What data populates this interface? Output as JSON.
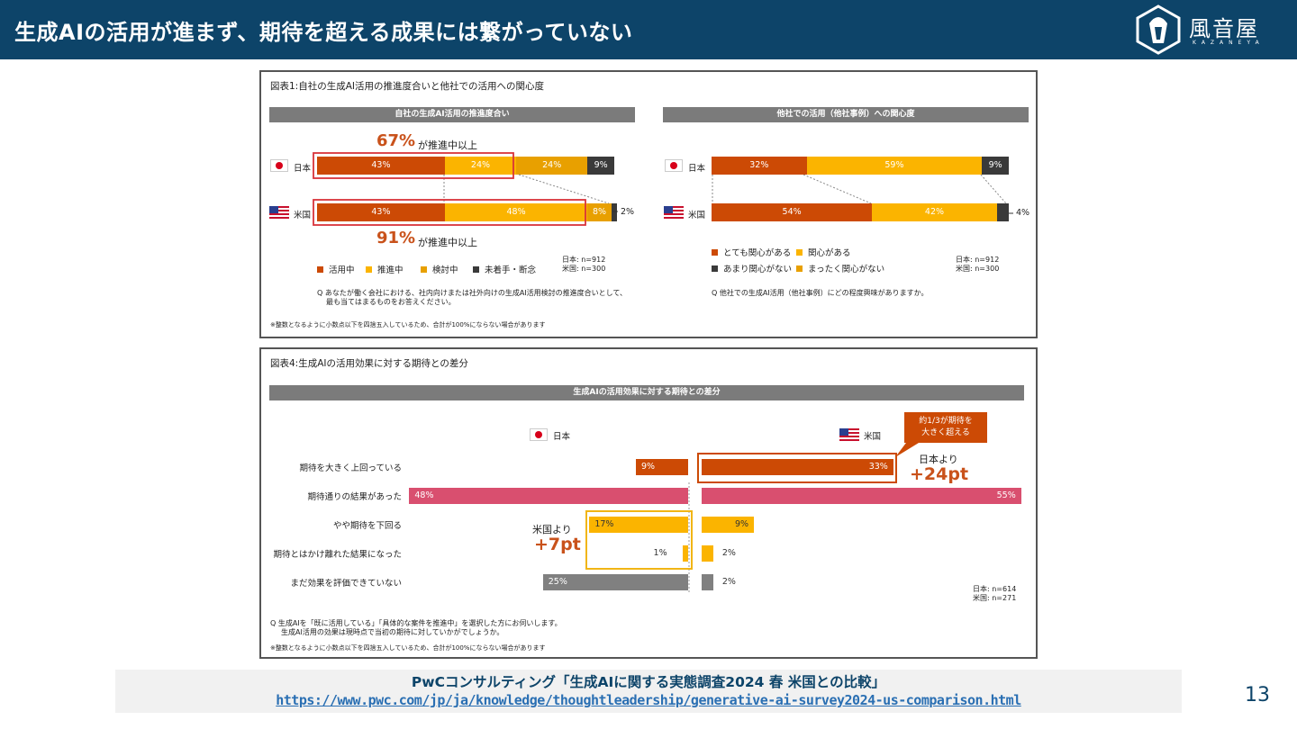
{
  "header": {
    "title": "生成AIの活用が進まず、期待を超える成果には繋がっていない",
    "logo_text": "風音屋",
    "logo_sub": "KAZANEYA"
  },
  "colors": {
    "katsuyo": "#cc4a05",
    "suishin": "#fbb400",
    "kento": "#e8a000",
    "michakushu": "#3a3a3a",
    "pink": "#d94f6f",
    "gray": "#808080",
    "navy": "#0d4469"
  },
  "fig1": {
    "title": "図表1:自社の生成AI活用の推進度合いと他社での活用への関心度",
    "left": {
      "band": "自社の生成AI活用の推進度合い",
      "top_callout_pct": "67%",
      "top_callout_text": "が推進中以上",
      "bottom_callout_pct": "91%",
      "bottom_callout_text": "が推進中以上",
      "jp_label": "日本",
      "us_label": "米国",
      "us_outside": "2%",
      "legend": [
        "活用中",
        "推進中",
        "検討中",
        "未着手・断念"
      ],
      "n_jp": "日本: n=912",
      "n_us": "米国: n=300",
      "q1": "Q あなたが働く会社における、社内向けまたは社外向けの生成AI活用検討の推進度合いとして、",
      "q2": "最も当てはまるものをお答えください。"
    },
    "right": {
      "band": "他社での活用（他社事例）への関心度",
      "jp_label": "日本",
      "us_label": "米国",
      "us_outside": "4%",
      "legend": [
        "とても関心がある",
        "関心がある",
        "あまり関心がない",
        "まったく関心がない"
      ],
      "n_jp": "日本: n=912",
      "n_us": "米国: n=300",
      "q": "Q 他社での生成AI活用（他社事例）にどの程度興味がありますか。"
    },
    "note": "※整数となるように小数点以下を四捨五入しているため、合計が100%にならない場合があります"
  },
  "fig2": {
    "title": "図表4:生成AIの活用効果に対する期待との差分",
    "band": "生成AIの活用効果に対する期待との差分",
    "jp_label": "日本",
    "us_label": "米国",
    "callout": "約1/3が期待を\n大きく超える",
    "us_diff_label": "日本より",
    "us_diff": "+24pt",
    "jp_diff_label": "米国より",
    "jp_diff": "+7pt",
    "rows": [
      "期待を大きく上回っている",
      "期待通りの結果があった",
      "やや期待を下回る",
      "期待とはかけ離れた結果になった",
      "まだ効果を評価できていない"
    ],
    "n_jp": "日本: n=614",
    "n_us": "米国: n=271",
    "q1": "Q 生成AIを「既に活用している」「具体的な案件を推進中」を選択した方にお伺いします。",
    "q2": "生成AI活用の効果は現時点で当初の期待に対していかがでしょうか。",
    "note": "※整数となるように小数点以下を四捨五入しているため、合計が100%にならない場合があります"
  },
  "chart_data": [
    {
      "type": "bar",
      "stacked": true,
      "orientation": "horizontal",
      "title": "自社の生成AI活用の推進度合い",
      "categories": [
        "日本",
        "米国"
      ],
      "series": [
        {
          "name": "活用中",
          "values": [
            43,
            43
          ],
          "labels": [
            "43%",
            "43%"
          ]
        },
        {
          "name": "推進中",
          "values": [
            24,
            48
          ],
          "labels": [
            "24%",
            "48%"
          ]
        },
        {
          "name": "検討中",
          "values": [
            24,
            8
          ],
          "labels": [
            "24%",
            "8%"
          ]
        },
        {
          "name": "未着手・断念",
          "values": [
            9,
            2
          ],
          "labels": [
            "9%",
            ""
          ]
        }
      ]
    },
    {
      "type": "bar",
      "stacked": true,
      "orientation": "horizontal",
      "title": "他社での活用（他社事例）への関心度",
      "categories": [
        "日本",
        "米国"
      ],
      "series": [
        {
          "name": "とても関心がある",
          "values": [
            32,
            54
          ],
          "labels": [
            "32%",
            "54%"
          ]
        },
        {
          "name": "関心がある",
          "values": [
            59,
            42
          ],
          "labels": [
            "59%",
            "42%"
          ]
        },
        {
          "name": "あまり関心がない",
          "values": [
            9,
            4
          ],
          "labels": [
            "9%",
            ""
          ]
        },
        {
          "name": "まったく関心がない",
          "values": [
            0,
            0
          ],
          "labels": [
            "",
            ""
          ]
        }
      ]
    },
    {
      "type": "bar",
      "orientation": "horizontal",
      "title": "生成AIの活用効果に対する期待との差分",
      "categories": [
        "期待を大きく上回っている",
        "期待通りの結果があった",
        "やや期待を下回る",
        "期待とはかけ離れた結果になった",
        "まだ効果を評価できていない"
      ],
      "series": [
        {
          "name": "日本",
          "values": [
            9,
            48,
            17,
            1,
            25
          ],
          "labels": [
            "9%",
            "48%",
            "17%",
            "1%",
            "25%"
          ]
        },
        {
          "name": "米国",
          "values": [
            33,
            55,
            9,
            2,
            2
          ],
          "labels": [
            "33%",
            "55%",
            "9%",
            "2%",
            "2%"
          ]
        }
      ]
    }
  ],
  "footer": {
    "source": "PwCコンサルティング「生成AIに関する実態調査2024 春 米国との比較」",
    "url": "https://www.pwc.com/jp/ja/knowledge/thoughtleadership/generative-ai-survey2024-us-comparison.html",
    "page": "13"
  }
}
